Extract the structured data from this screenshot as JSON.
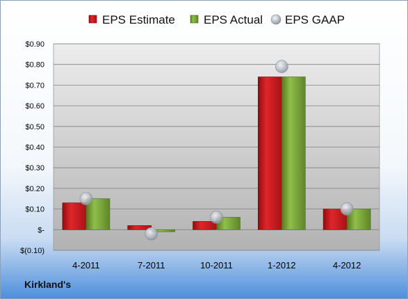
{
  "company": "Kirkland's",
  "colors": {
    "estimate": "#c4161c",
    "actual": "#76a03a",
    "gaap": "#b8bec6",
    "plot_top": "#ececec",
    "plot_bottom": "#b4b4b4"
  },
  "chart_data": {
    "type": "bar",
    "categories": [
      "4-2011",
      "7-2011",
      "10-2011",
      "1-2012",
      "4-2012"
    ],
    "series": [
      {
        "name": "EPS Estimate",
        "values": [
          0.13,
          0.02,
          0.04,
          0.74,
          0.1
        ]
      },
      {
        "name": "EPS Actual",
        "values": [
          0.15,
          -0.01,
          0.06,
          0.74,
          0.1
        ]
      },
      {
        "name": "EPS GAAP",
        "marker": "circle",
        "values": [
          0.15,
          -0.02,
          0.06,
          0.79,
          0.1
        ]
      }
    ],
    "ylim": [
      -0.1,
      0.9
    ],
    "yticks": [
      -0.1,
      0.0,
      0.1,
      0.2,
      0.3,
      0.4,
      0.5,
      0.6,
      0.7,
      0.8,
      0.9
    ],
    "ytick_labels": [
      "$(0.10)",
      "$-",
      "$0.10",
      "$0.20",
      "$0.30",
      "$0.40",
      "$0.50",
      "$0.60",
      "$0.70",
      "$0.80",
      "$0.90"
    ],
    "grid": true,
    "legend_position": "top"
  }
}
